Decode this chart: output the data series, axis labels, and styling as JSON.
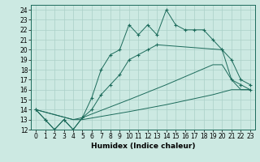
{
  "xlabel": "Humidex (Indice chaleur)",
  "xlim": [
    -0.5,
    23.5
  ],
  "ylim": [
    12,
    24.5
  ],
  "xticks": [
    0,
    1,
    2,
    3,
    4,
    5,
    6,
    7,
    8,
    9,
    10,
    11,
    12,
    13,
    14,
    15,
    16,
    17,
    18,
    19,
    20,
    21,
    22,
    23
  ],
  "yticks": [
    12,
    13,
    14,
    15,
    16,
    17,
    18,
    19,
    20,
    21,
    22,
    23,
    24
  ],
  "bg_color": "#cce9e2",
  "line_color": "#1c6b5b",
  "grid_color": "#aad0c8",
  "line1_x": [
    0,
    1,
    2,
    3,
    4,
    5,
    6,
    7,
    8,
    9,
    10,
    11,
    12,
    13,
    14,
    15,
    16,
    17,
    18,
    19,
    20,
    21,
    22,
    23
  ],
  "line1_y": [
    14,
    13,
    12,
    13,
    12,
    13.2,
    15.2,
    18,
    19.5,
    20,
    22.5,
    21.5,
    22.5,
    21.5,
    24.0,
    22.5,
    22,
    22,
    22,
    21,
    20,
    17,
    16.5,
    16
  ],
  "line2_x": [
    0,
    1,
    2,
    3,
    4,
    5,
    6,
    7,
    8,
    9,
    10,
    11,
    12,
    13,
    20,
    21,
    22,
    23
  ],
  "line2_y": [
    14,
    13,
    12,
    13,
    12,
    13.2,
    14.0,
    15.5,
    16.5,
    17.5,
    19,
    19.5,
    20,
    20.5,
    20,
    19,
    17,
    16.5
  ],
  "line3_x": [
    0,
    4,
    5,
    10,
    14,
    19,
    20,
    21,
    22,
    23
  ],
  "line3_y": [
    14,
    13,
    13.2,
    15.0,
    16.5,
    18.5,
    18.5,
    17,
    16,
    16
  ],
  "line4_x": [
    0,
    4,
    5,
    10,
    14,
    19,
    21,
    22,
    23
  ],
  "line4_y": [
    14,
    13,
    13.0,
    13.8,
    14.5,
    15.5,
    16,
    16,
    16
  ],
  "tick_fontsize": 5.5,
  "label_fontsize": 6.5
}
